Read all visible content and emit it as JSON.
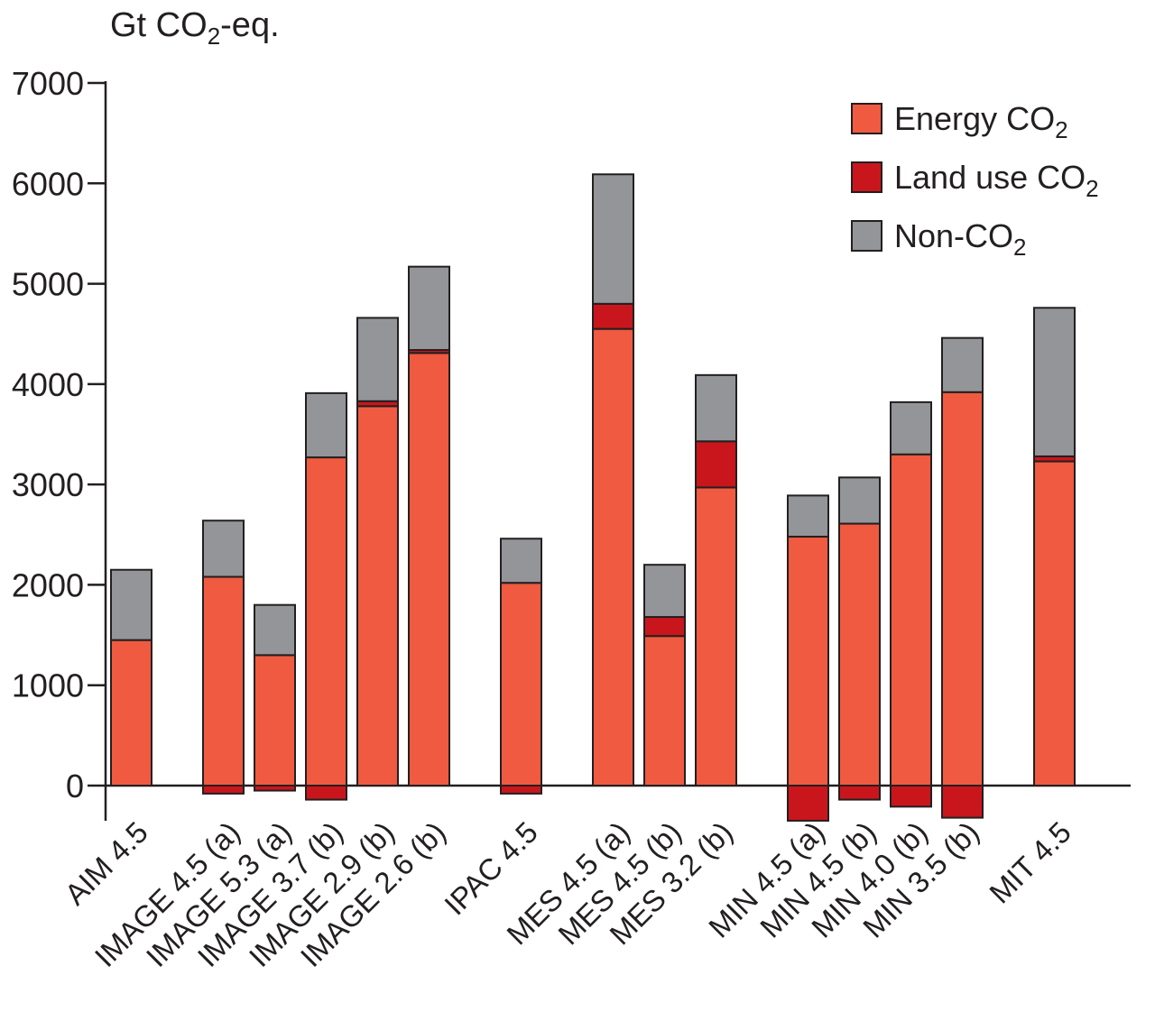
{
  "chart_data": {
    "type": "bar",
    "stacked": true,
    "ylabel": {
      "main": "Gt CO",
      "sub": "2",
      "tail": "-eq."
    },
    "ylim": [
      -350,
      7000
    ],
    "yticks": [
      0,
      1000,
      2000,
      3000,
      4000,
      5000,
      6000,
      7000
    ],
    "ytick_labels": [
      "0",
      "1000",
      "2000",
      "3000",
      "4000",
      "5000",
      "6000",
      "7000"
    ],
    "grid": false,
    "legend_position": "top-right",
    "colors": {
      "energy": "#ef5a40",
      "land": "#c9161c",
      "nonco2": "#939598",
      "axis": "#231f20"
    },
    "legend": [
      {
        "key": "energy",
        "label": "Energy CO",
        "sub": "2"
      },
      {
        "key": "land",
        "label": "Land use CO",
        "sub": "2"
      },
      {
        "key": "nonco2",
        "label": "Non-CO",
        "sub": "2"
      }
    ],
    "groups": [
      [
        {
          "label": "AIM 4.5",
          "energy": 1450,
          "land": 0,
          "nonco2": 700
        }
      ],
      [
        {
          "label": "IMAGE 4.5 (a)",
          "energy": 2080,
          "land": -80,
          "nonco2": 560
        },
        {
          "label": "IMAGE 5.3 (a)",
          "energy": 1300,
          "land": -50,
          "nonco2": 500
        },
        {
          "label": "IMAGE 3.7 (b)",
          "energy": 3270,
          "land": -140,
          "nonco2": 640
        },
        {
          "label": "IMAGE 2.9 (b)",
          "energy": 3780,
          "land": 50,
          "nonco2": 830
        },
        {
          "label": "IMAGE 2.6 (b)",
          "energy": 4310,
          "land": 30,
          "nonco2": 830
        }
      ],
      [
        {
          "label": "IPAC 4.5",
          "energy": 2020,
          "land": -80,
          "nonco2": 440
        }
      ],
      [
        {
          "label": "MES 4.5 (a)",
          "energy": 4550,
          "land": 250,
          "nonco2": 1290
        },
        {
          "label": "MES 4.5 (b)",
          "energy": 1490,
          "land": 190,
          "nonco2": 520
        },
        {
          "label": "MES 3.2 (b)",
          "energy": 2970,
          "land": 460,
          "nonco2": 660
        }
      ],
      [
        {
          "label": "MIN 4.5 (a)",
          "energy": 2480,
          "land": -350,
          "nonco2": 410
        },
        {
          "label": "MIN 4.5 (b)",
          "energy": 2610,
          "land": -140,
          "nonco2": 460
        },
        {
          "label": "MIN 4.0 (b)",
          "energy": 3300,
          "land": -210,
          "nonco2": 520
        },
        {
          "label": "MIN 3.5 (b)",
          "energy": 3920,
          "land": -320,
          "nonco2": 540
        }
      ],
      [
        {
          "label": "MIT 4.5",
          "energy": 3230,
          "land": 50,
          "nonco2": 1480
        }
      ]
    ]
  }
}
